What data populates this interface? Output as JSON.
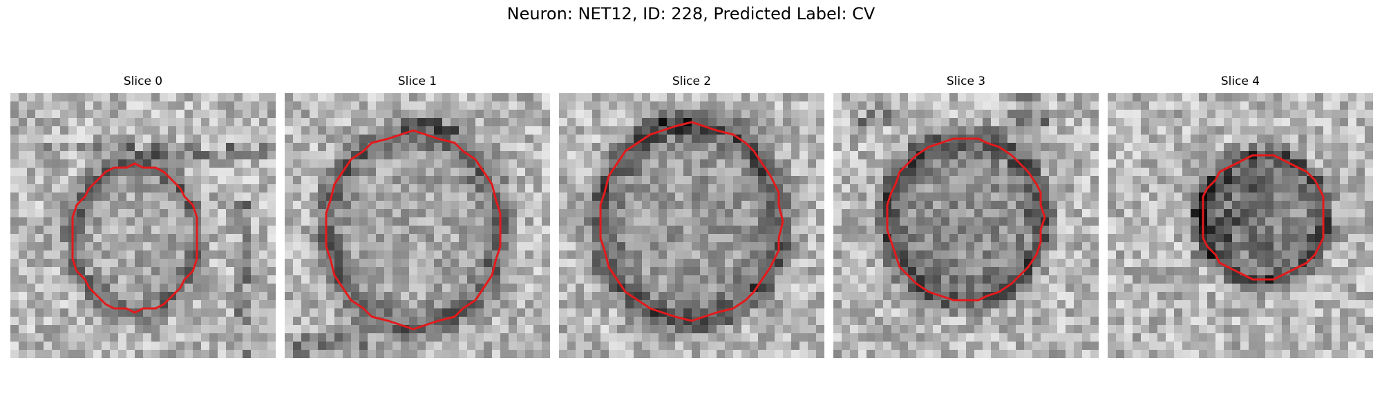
{
  "figure": {
    "title": "Neuron: NET12, ID: 228, Predicted Label: CV",
    "contour_color": "#e31a1c",
    "panels": [
      {
        "title": "Slice 0"
      },
      {
        "title": "Slice 1"
      },
      {
        "title": "Slice 2"
      },
      {
        "title": "Slice 3"
      },
      {
        "title": "Slice 4"
      }
    ]
  }
}
